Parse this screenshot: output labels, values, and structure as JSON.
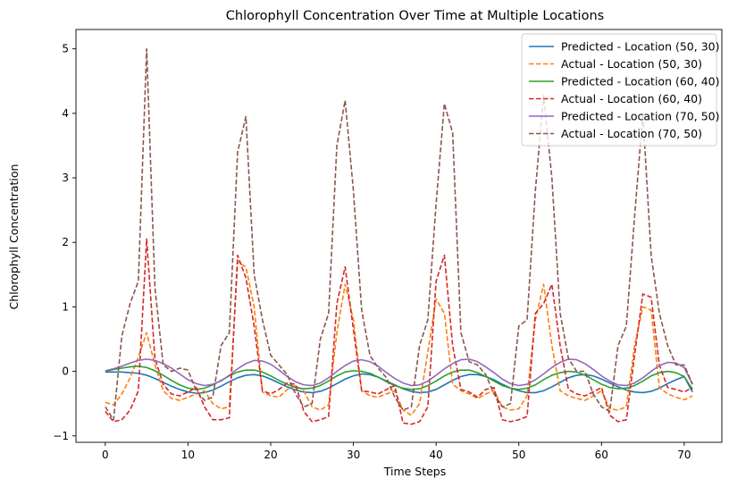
{
  "chart_data": {
    "type": "line",
    "title": "Chlorophyll Concentration Over Time at Multiple Locations",
    "xlabel": "Time Steps",
    "ylabel": "Chlorophyll Concentration",
    "xlim": [
      -3.55,
      74.55
    ],
    "ylim": [
      -1.1,
      5.3
    ],
    "xticks": [
      0,
      10,
      20,
      30,
      40,
      50,
      60,
      70
    ],
    "yticks": [
      -1,
      0,
      1,
      2,
      3,
      4,
      5
    ],
    "grid": false,
    "legend": "top-right",
    "x": [
      0,
      1,
      2,
      3,
      4,
      5,
      6,
      7,
      8,
      9,
      10,
      11,
      12,
      13,
      14,
      15,
      16,
      17,
      18,
      19,
      20,
      21,
      22,
      23,
      24,
      25,
      26,
      27,
      28,
      29,
      30,
      31,
      32,
      33,
      34,
      35,
      36,
      37,
      38,
      39,
      40,
      41,
      42,
      43,
      44,
      45,
      46,
      47,
      48,
      49,
      50,
      51,
      52,
      53,
      54,
      55,
      56,
      57,
      58,
      59,
      60,
      61,
      62,
      63,
      64,
      65,
      66,
      67,
      68,
      69,
      70,
      71
    ],
    "series": [
      {
        "name": "Predicted - Location (50, 30)",
        "color": "#1f77b4",
        "dash": "solid",
        "values": [
          -0.01,
          -0.01,
          -0.01,
          -0.02,
          -0.03,
          -0.06,
          -0.11,
          -0.17,
          -0.23,
          -0.28,
          -0.32,
          -0.34,
          -0.33,
          -0.29,
          -0.23,
          -0.16,
          -0.1,
          -0.06,
          -0.05,
          -0.07,
          -0.12,
          -0.18,
          -0.24,
          -0.29,
          -0.32,
          -0.33,
          -0.31,
          -0.26,
          -0.19,
          -0.12,
          -0.07,
          -0.04,
          -0.05,
          -0.09,
          -0.15,
          -0.21,
          -0.27,
          -0.31,
          -0.33,
          -0.32,
          -0.28,
          -0.21,
          -0.14,
          -0.08,
          -0.05,
          -0.05,
          -0.08,
          -0.13,
          -0.2,
          -0.26,
          -0.3,
          -0.33,
          -0.33,
          -0.3,
          -0.24,
          -0.17,
          -0.1,
          -0.06,
          -0.05,
          -0.07,
          -0.12,
          -0.18,
          -0.24,
          -0.29,
          -0.32,
          -0.33,
          -0.31,
          -0.26,
          -0.19,
          -0.13,
          -0.08,
          -0.32
        ]
      },
      {
        "name": "Actual - Location (50, 30)",
        "color": "#ff7f0e",
        "dash": "dashed",
        "values": [
          -0.48,
          -0.52,
          -0.35,
          -0.1,
          0.22,
          0.6,
          0.1,
          -0.3,
          -0.42,
          -0.45,
          -0.4,
          -0.35,
          -0.3,
          -0.5,
          -0.58,
          -0.55,
          1.7,
          1.62,
          1.0,
          -0.32,
          -0.38,
          -0.4,
          -0.28,
          -0.22,
          -0.3,
          -0.55,
          -0.6,
          -0.52,
          0.6,
          1.35,
          0.8,
          -0.3,
          -0.38,
          -0.4,
          -0.35,
          -0.3,
          -0.6,
          -0.68,
          -0.5,
          0.3,
          1.12,
          0.9,
          -0.2,
          -0.3,
          -0.35,
          -0.42,
          -0.35,
          -0.3,
          -0.55,
          -0.6,
          -0.58,
          -0.38,
          0.8,
          1.35,
          0.4,
          -0.3,
          -0.38,
          -0.42,
          -0.45,
          -0.38,
          -0.3,
          -0.58,
          -0.6,
          -0.55,
          0.4,
          1.0,
          0.95,
          -0.25,
          -0.35,
          -0.4,
          -0.44,
          -0.38
        ]
      },
      {
        "name": "Predicted - Location (60, 40)",
        "color": "#2ca02c",
        "dash": "solid",
        "values": [
          0.0,
          0.03,
          0.05,
          0.07,
          0.08,
          0.06,
          0.01,
          -0.06,
          -0.14,
          -0.21,
          -0.26,
          -0.28,
          -0.26,
          -0.21,
          -0.14,
          -0.07,
          -0.01,
          0.02,
          0.02,
          -0.01,
          -0.07,
          -0.14,
          -0.2,
          -0.25,
          -0.27,
          -0.26,
          -0.22,
          -0.15,
          -0.07,
          -0.01,
          0.01,
          0.0,
          -0.03,
          -0.09,
          -0.16,
          -0.22,
          -0.26,
          -0.28,
          -0.27,
          -0.22,
          -0.15,
          -0.07,
          -0.01,
          0.02,
          0.02,
          -0.02,
          -0.08,
          -0.15,
          -0.22,
          -0.26,
          -0.28,
          -0.26,
          -0.21,
          -0.13,
          -0.06,
          -0.02,
          0.0,
          -0.01,
          -0.06,
          -0.13,
          -0.2,
          -0.25,
          -0.27,
          -0.26,
          -0.22,
          -0.15,
          -0.07,
          -0.02,
          0.0,
          -0.02,
          -0.08,
          -0.28
        ]
      },
      {
        "name": "Actual - Location (60, 40)",
        "color": "#d62728",
        "dash": "dashed",
        "values": [
          -0.62,
          -0.78,
          -0.75,
          -0.6,
          -0.3,
          2.05,
          0.2,
          -0.2,
          -0.35,
          -0.38,
          -0.32,
          -0.25,
          -0.55,
          -0.75,
          -0.75,
          -0.72,
          1.8,
          1.45,
          0.7,
          -0.3,
          -0.35,
          -0.28,
          -0.18,
          -0.2,
          -0.62,
          -0.78,
          -0.75,
          -0.7,
          1.05,
          1.62,
          0.65,
          -0.3,
          -0.32,
          -0.35,
          -0.28,
          -0.22,
          -0.8,
          -0.82,
          -0.78,
          -0.55,
          1.4,
          1.8,
          0.4,
          -0.28,
          -0.32,
          -0.4,
          -0.28,
          -0.25,
          -0.75,
          -0.78,
          -0.75,
          -0.7,
          0.9,
          1.05,
          1.35,
          0.4,
          -0.28,
          -0.35,
          -0.38,
          -0.32,
          -0.25,
          -0.68,
          -0.78,
          -0.75,
          0.25,
          1.2,
          1.15,
          0.1,
          -0.25,
          -0.28,
          -0.32,
          -0.25
        ]
      },
      {
        "name": "Predicted - Location (70, 50)",
        "color": "#9467bd",
        "dash": "solid",
        "values": [
          0.01,
          0.04,
          0.08,
          0.13,
          0.17,
          0.19,
          0.17,
          0.12,
          0.05,
          -0.04,
          -0.13,
          -0.19,
          -0.22,
          -0.2,
          -0.15,
          -0.06,
          0.04,
          0.12,
          0.17,
          0.16,
          0.11,
          0.02,
          -0.08,
          -0.16,
          -0.21,
          -0.22,
          -0.18,
          -0.1,
          0.0,
          0.09,
          0.16,
          0.18,
          0.15,
          0.08,
          -0.02,
          -0.11,
          -0.18,
          -0.22,
          -0.21,
          -0.15,
          -0.06,
          0.04,
          0.12,
          0.18,
          0.19,
          0.15,
          0.07,
          -0.02,
          -0.12,
          -0.19,
          -0.22,
          -0.2,
          -0.13,
          -0.04,
          0.06,
          0.14,
          0.19,
          0.18,
          0.12,
          0.03,
          -0.07,
          -0.15,
          -0.21,
          -0.22,
          -0.18,
          -0.1,
          0.0,
          0.09,
          0.14,
          0.13,
          0.06,
          -0.2
        ]
      },
      {
        "name": "Actual - Location (70, 50)",
        "color": "#8c564b",
        "dash": "dashed",
        "values": [
          -0.55,
          -0.75,
          0.55,
          1.05,
          1.4,
          5.0,
          1.3,
          0.1,
          0.0,
          0.05,
          0.02,
          -0.3,
          -0.45,
          -0.4,
          0.4,
          0.6,
          3.4,
          3.95,
          1.5,
          0.8,
          0.25,
          0.1,
          -0.05,
          -0.35,
          -0.55,
          -0.5,
          0.5,
          0.9,
          3.5,
          4.2,
          2.8,
          0.95,
          0.25,
          0.05,
          -0.1,
          -0.4,
          -0.6,
          -0.55,
          0.4,
          0.8,
          2.6,
          4.15,
          3.7,
          0.6,
          0.15,
          0.1,
          -0.05,
          -0.35,
          -0.55,
          -0.5,
          0.7,
          0.8,
          2.8,
          4.28,
          3.0,
          0.9,
          0.2,
          0.0,
          0.0,
          -0.35,
          -0.55,
          -0.62,
          0.4,
          0.7,
          2.4,
          4.0,
          1.8,
          0.9,
          0.4,
          0.1,
          0.1,
          -0.2
        ]
      }
    ]
  }
}
